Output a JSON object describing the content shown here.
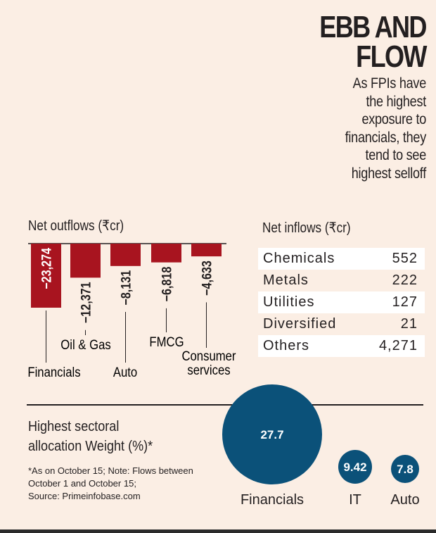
{
  "header": {
    "title_lines": [
      "EBB AND",
      "FLOW"
    ],
    "subtitle_lines": [
      "As FPIs have",
      "the highest",
      "exposure to",
      "financials, they",
      "tend to see",
      "highest selloff"
    ]
  },
  "colors": {
    "background": "#fbeee4",
    "outflow_bar": "#a8141f",
    "bubble": "#0b5179",
    "text": "#231f20"
  },
  "chart_data": [
    {
      "type": "bar",
      "title": "Net outflows (₹cr)",
      "categories": [
        "Financials",
        "Oil & Gas",
        "Auto",
        "FMCG",
        "Consumer services"
      ],
      "values": [
        -23274,
        -12371,
        -8131,
        -6818,
        -4633
      ],
      "value_labels": [
        "−23,274",
        "−12,371",
        "−8,131",
        "−6,818",
        "−4,633"
      ],
      "orientation": "vertical-downward"
    },
    {
      "type": "table",
      "title": "Net inflows (₹cr)",
      "rows": [
        {
          "label": "Chemicals",
          "value": "552"
        },
        {
          "label": "Metals",
          "value": "222"
        },
        {
          "label": "Utilities",
          "value": "127"
        },
        {
          "label": "Diversified",
          "value": "21"
        },
        {
          "label": "Others",
          "value": "4,271"
        }
      ]
    },
    {
      "type": "bubble",
      "title_lines": [
        "Highest sectoral",
        "allocation Weight (%)*"
      ],
      "categories": [
        "Financials",
        "IT",
        "Auto"
      ],
      "values": [
        27.7,
        9.42,
        7.8
      ],
      "value_labels": [
        "27.7",
        "9.42",
        "7.8"
      ]
    }
  ],
  "notes_lines": [
    "*As on October 15; Note: Flows between",
    "October 1 and October 15;",
    "Source: Primeinfobase.com"
  ]
}
